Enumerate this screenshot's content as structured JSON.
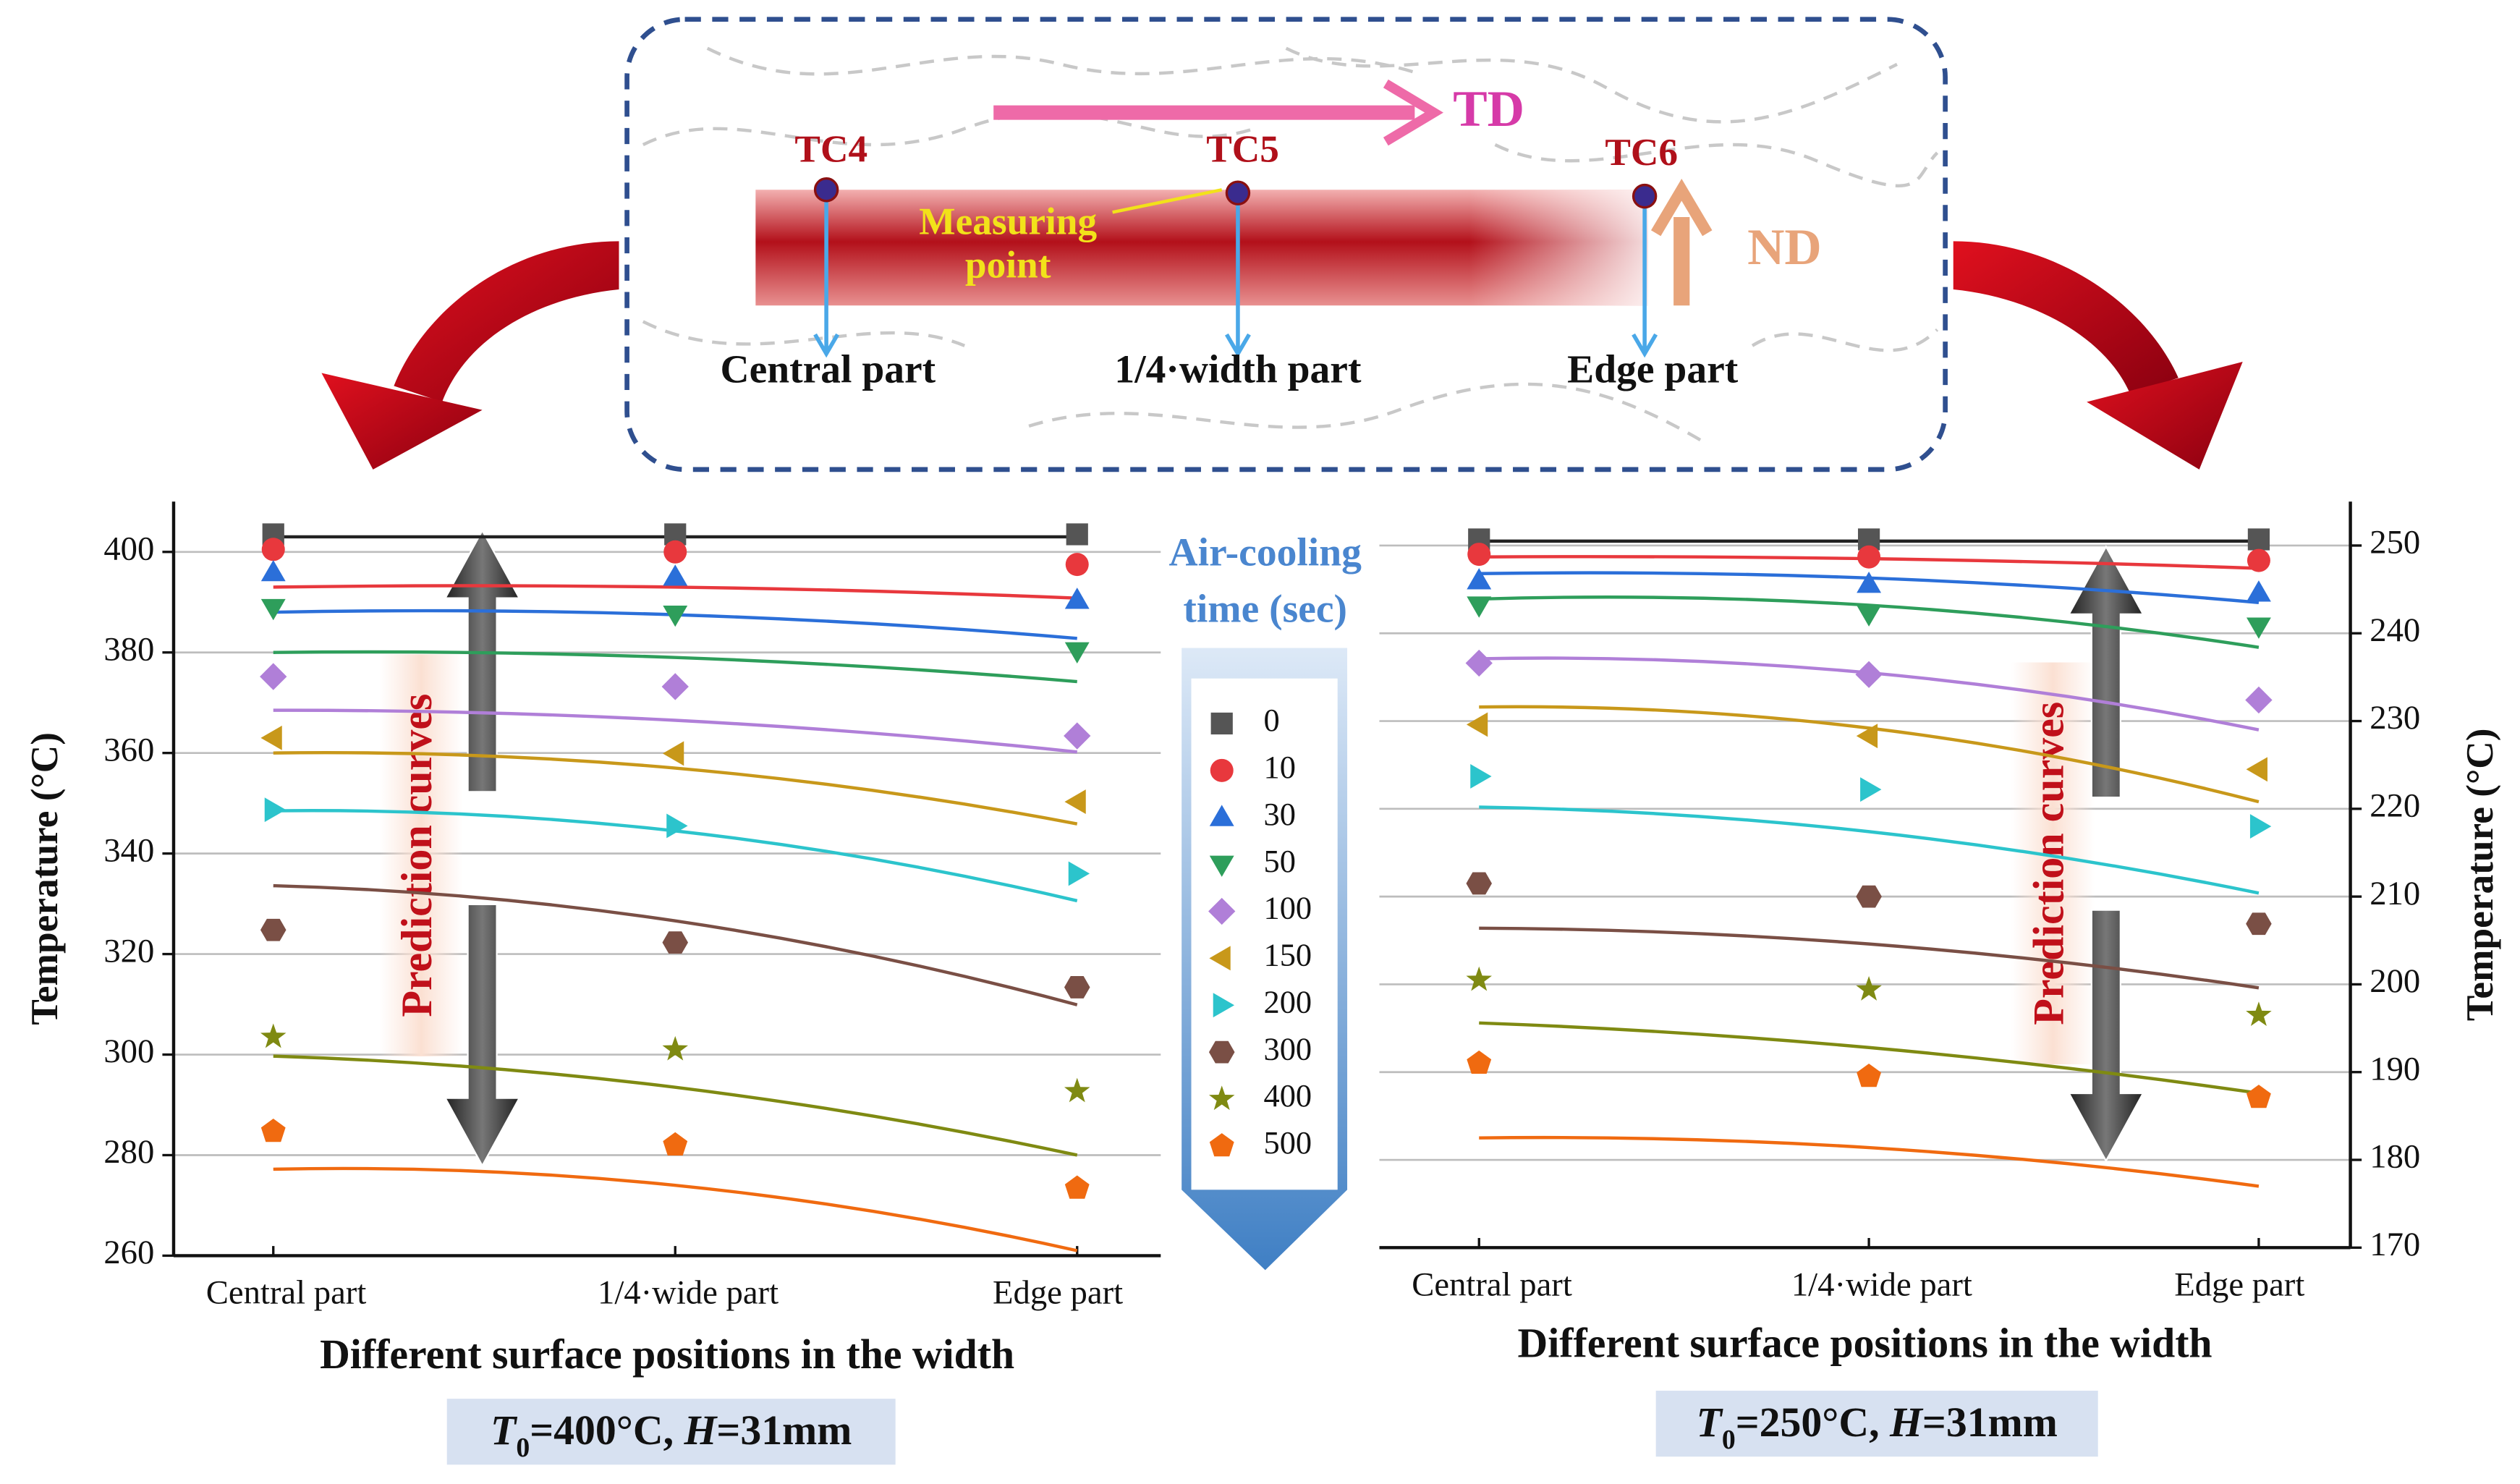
{
  "diagram": {
    "thermocouples": [
      "TC4",
      "TC5",
      "TC6"
    ],
    "td": "TD",
    "nd": "ND",
    "measuring": [
      "Measuring",
      "point"
    ],
    "positions": [
      "Central part",
      "1/4·width part",
      "Edge part"
    ]
  },
  "legend": {
    "title_lines": [
      "Air-cooling",
      "time (sec)"
    ],
    "entries": [
      {
        "name": "0",
        "color": "#555555",
        "marker": "square"
      },
      {
        "name": "10",
        "color": "#e8383d",
        "marker": "circle"
      },
      {
        "name": "30",
        "color": "#2b6fd9",
        "marker": "tri-up"
      },
      {
        "name": "50",
        "color": "#2e9e5b",
        "marker": "tri-down"
      },
      {
        "name": "100",
        "color": "#b07fd8",
        "marker": "diamond"
      },
      {
        "name": "150",
        "color": "#c8981a",
        "marker": "tri-left"
      },
      {
        "name": "200",
        "color": "#2cc4cc",
        "marker": "tri-right"
      },
      {
        "name": "300",
        "color": "#7a4f45",
        "marker": "hexagon"
      },
      {
        "name": "400",
        "color": "#7f8a12",
        "marker": "star"
      },
      {
        "name": "500",
        "color": "#f06a10",
        "marker": "pentagon"
      }
    ]
  },
  "chart_data": [
    {
      "type": "scatter",
      "categories": [
        "Central part",
        "1/4·wide part",
        "Edge part"
      ],
      "xlabel": "Different surface positions in the width",
      "ylabel": "Temperature (°C)",
      "axis_side": "left",
      "grid": true,
      "annotation": "Prediction curves",
      "caption": [
        "T",
        "0",
        "=400°C, ",
        "H",
        "=31mm"
      ],
      "ylim": [
        260,
        410
      ],
      "yticks": [
        260,
        280,
        300,
        320,
        340,
        360,
        380,
        400
      ],
      "series": [
        {
          "values": [
            403.5,
            403.5,
            403.5
          ],
          "curve": [
            403,
            403,
            403
          ]
        },
        {
          "values": [
            400.5,
            400,
            397.5
          ],
          "curve": [
            393,
            393,
            390.8
          ]
        },
        {
          "values": [
            395.9,
            395,
            390.4
          ],
          "curve": [
            388,
            387.5,
            382.8
          ]
        },
        {
          "values": [
            388.9,
            387.6,
            380.3
          ],
          "curve": [
            380,
            379,
            374.2
          ]
        },
        {
          "values": [
            375.2,
            373.2,
            363.4
          ],
          "curve": [
            368.5,
            366.5,
            360.2
          ]
        },
        {
          "values": [
            363,
            359.9,
            350.3
          ],
          "curve": [
            360,
            357,
            345.9
          ]
        },
        {
          "values": [
            348.7,
            345.5,
            336
          ],
          "curve": [
            348.5,
            344.5,
            330.6
          ]
        },
        {
          "values": [
            324.8,
            322.3,
            313.4
          ],
          "curve": [
            333.6,
            326.6,
            309.9
          ]
        },
        {
          "values": [
            303.5,
            301,
            292.7
          ],
          "curve": [
            299.7,
            293.5,
            280
          ]
        },
        {
          "values": [
            284.7,
            282,
            273.4
          ],
          "curve": [
            277.2,
            274,
            261
          ]
        }
      ]
    },
    {
      "type": "scatter",
      "categories": [
        "Central part",
        "1/4·wide part",
        "Edge part"
      ],
      "xlabel": "Different surface positions in the width",
      "ylabel": "Temperature (°C)",
      "axis_side": "right",
      "grid": true,
      "annotation": "Prediction curves",
      "caption": [
        "T",
        "0",
        "=250°C, ",
        "H",
        "=31mm"
      ],
      "ylim": [
        170,
        255
      ],
      "yticks": [
        170,
        180,
        190,
        200,
        210,
        220,
        230,
        240,
        250
      ],
      "series": [
        {
          "values": [
            250.7,
            250.7,
            250.7
          ],
          "curve": [
            250.5,
            250.5,
            250.5
          ]
        },
        {
          "values": [
            249,
            248.7,
            248.3
          ],
          "curve": [
            248.7,
            248.5,
            247.4
          ]
        },
        {
          "values": [
            246,
            245.6,
            244.6
          ],
          "curve": [
            246.8,
            246.3,
            243.5
          ]
        },
        {
          "values": [
            243.2,
            242.2,
            240.8
          ],
          "curve": [
            243.9,
            243.2,
            238.4
          ]
        },
        {
          "values": [
            236.6,
            235.3,
            232.4
          ],
          "curve": [
            237.1,
            235.5,
            229
          ]
        },
        {
          "values": [
            229.6,
            228.3,
            224.5
          ],
          "curve": [
            231.6,
            229.2,
            220.8
          ]
        },
        {
          "values": [
            223.7,
            222.2,
            218
          ],
          "curve": [
            220.2,
            217.4,
            210.4
          ]
        },
        {
          "values": [
            211.5,
            210,
            206.9
          ],
          "curve": [
            206.4,
            204.6,
            199.6
          ]
        },
        {
          "values": [
            200.5,
            199.4,
            196.5
          ],
          "curve": [
            195.6,
            192.8,
            187.6
          ]
        },
        {
          "values": [
            191,
            189.5,
            187.1
          ],
          "curve": [
            182.5,
            181.4,
            177
          ]
        }
      ]
    }
  ]
}
